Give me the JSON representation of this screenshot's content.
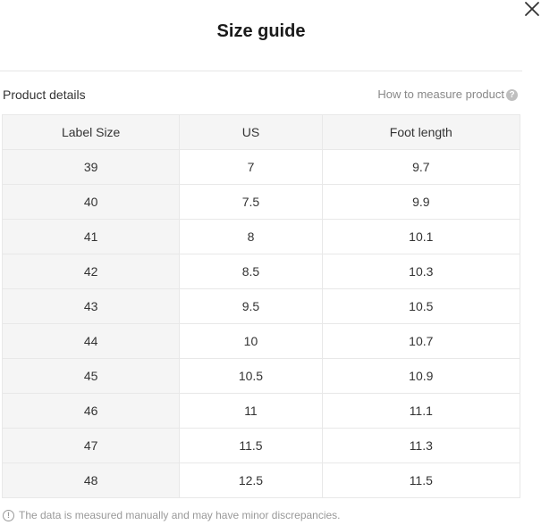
{
  "dialog": {
    "title": "Size guide",
    "close_icon": "close-icon"
  },
  "section": {
    "label": "Product details",
    "how_to_measure": "How to measure product",
    "help_icon": "question-circle-icon"
  },
  "table": {
    "headers": [
      "Label Size",
      "US",
      "Foot length"
    ],
    "rows": [
      [
        "39",
        "7",
        "9.7"
      ],
      [
        "40",
        "7.5",
        "9.9"
      ],
      [
        "41",
        "8",
        "10.1"
      ],
      [
        "42",
        "8.5",
        "10.3"
      ],
      [
        "43",
        "9.5",
        "10.5"
      ],
      [
        "44",
        "10",
        "10.7"
      ],
      [
        "45",
        "10.5",
        "10.9"
      ],
      [
        "46",
        "11",
        "11.1"
      ],
      [
        "47",
        "11.5",
        "11.3"
      ],
      [
        "48",
        "12.5",
        "11.5"
      ]
    ]
  },
  "footnote": {
    "text": "The data is measured manually and may have minor discrepancies.",
    "info_icon": "info-circle-icon"
  },
  "colors": {
    "header_bg": "#f5f5f5",
    "border": "#e8e8e8",
    "muted_text": "#999999"
  }
}
